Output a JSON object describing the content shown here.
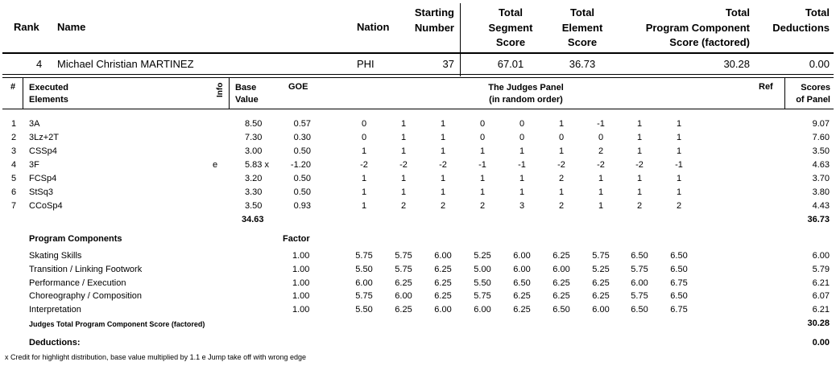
{
  "summary_header": {
    "rank": "Rank",
    "name": "Name",
    "nation": "Nation",
    "starting_number": [
      "Starting",
      "Number"
    ],
    "total_segment": [
      "Total",
      "Segment",
      "Score"
    ],
    "total_element": [
      "Total",
      "Element",
      "Score"
    ],
    "total_program": [
      "Total",
      "Program  Component",
      "Score (factored)"
    ],
    "total_deductions": [
      "Total",
      "Deductions"
    ]
  },
  "summary_row": {
    "rank": "4",
    "name": "Michael Christian MARTINEZ",
    "nation": "PHI",
    "starting_number": "37",
    "total_segment": "67.01",
    "total_element": "36.73",
    "total_program": "30.28",
    "total_deductions": "0.00"
  },
  "elements_header": {
    "num": "#",
    "executed": [
      "Executed",
      "Elements"
    ],
    "info": "Info",
    "base": [
      "Base",
      "Value"
    ],
    "goe": "GOE",
    "panel": [
      "The Judges Panel",
      "(in random order)"
    ],
    "ref": "Ref",
    "scores": [
      "Scores",
      "of Panel"
    ]
  },
  "elements": [
    {
      "num": "1",
      "name": "3A",
      "info": "",
      "base": "8.50",
      "goe": "0.57",
      "judges": [
        "0",
        "1",
        "1",
        "0",
        "0",
        "1",
        "-1",
        "1",
        "1"
      ],
      "score": "9.07"
    },
    {
      "num": "2",
      "name": "3Lz+2T",
      "info": "",
      "base": "7.30",
      "goe": "0.30",
      "judges": [
        "0",
        "1",
        "1",
        "0",
        "0",
        "0",
        "0",
        "1",
        "1"
      ],
      "score": "7.60"
    },
    {
      "num": "3",
      "name": "CSSp4",
      "info": "",
      "base": "3.00",
      "goe": "0.50",
      "judges": [
        "1",
        "1",
        "1",
        "1",
        "1",
        "1",
        "2",
        "1",
        "1"
      ],
      "score": "3.50"
    },
    {
      "num": "4",
      "name": "3F",
      "info": "e",
      "base": "5.83 x",
      "goe": "-1.20",
      "judges": [
        "-2",
        "-2",
        "-2",
        "-1",
        "-1",
        "-2",
        "-2",
        "-2",
        "-1"
      ],
      "score": "4.63"
    },
    {
      "num": "5",
      "name": "FCSp4",
      "info": "",
      "base": "3.20",
      "goe": "0.50",
      "judges": [
        "1",
        "1",
        "1",
        "1",
        "1",
        "2",
        "1",
        "1",
        "1"
      ],
      "score": "3.70"
    },
    {
      "num": "6",
      "name": "StSq3",
      "info": "",
      "base": "3.30",
      "goe": "0.50",
      "judges": [
        "1",
        "1",
        "1",
        "1",
        "1",
        "1",
        "1",
        "1",
        "1"
      ],
      "score": "3.80"
    },
    {
      "num": "7",
      "name": "CCoSp4",
      "info": "",
      "base": "3.50",
      "goe": "0.93",
      "judges": [
        "1",
        "2",
        "2",
        "2",
        "3",
        "2",
        "1",
        "2",
        "2"
      ],
      "score": "4.43"
    }
  ],
  "elements_total": {
    "base": "34.63",
    "score": "36.73"
  },
  "components_header": {
    "title": "Program Components",
    "factor": "Factor"
  },
  "components": [
    {
      "name": "Skating Skills",
      "factor": "1.00",
      "judges": [
        "5.75",
        "5.75",
        "6.00",
        "5.25",
        "6.00",
        "6.25",
        "5.75",
        "6.50",
        "6.50"
      ],
      "score": "6.00"
    },
    {
      "name": "Transition / Linking Footwork",
      "factor": "1.00",
      "judges": [
        "5.50",
        "5.75",
        "6.25",
        "5.00",
        "6.00",
        "6.00",
        "5.25",
        "5.75",
        "6.50"
      ],
      "score": "5.79"
    },
    {
      "name": "Performance / Execution",
      "factor": "1.00",
      "judges": [
        "6.00",
        "6.25",
        "6.25",
        "5.50",
        "6.50",
        "6.25",
        "6.25",
        "6.00",
        "6.75"
      ],
      "score": "6.21"
    },
    {
      "name": "Choreography / Composition",
      "factor": "1.00",
      "judges": [
        "5.75",
        "6.00",
        "6.25",
        "5.75",
        "6.25",
        "6.25",
        "6.25",
        "5.75",
        "6.50"
      ],
      "score": "6.07"
    },
    {
      "name": "Interpretation",
      "factor": "1.00",
      "judges": [
        "5.50",
        "6.25",
        "6.00",
        "6.00",
        "6.25",
        "6.50",
        "6.00",
        "6.50",
        "6.75"
      ],
      "score": "6.21"
    }
  ],
  "components_total": {
    "label": "Judges Total Program Component Score (factored)",
    "score": "30.28"
  },
  "deductions": {
    "label": "Deductions:",
    "score": "0.00"
  },
  "footnote": "x  Credit for highlight distribution, base value multiplied by 1.1   e  Jump take off with wrong edge"
}
